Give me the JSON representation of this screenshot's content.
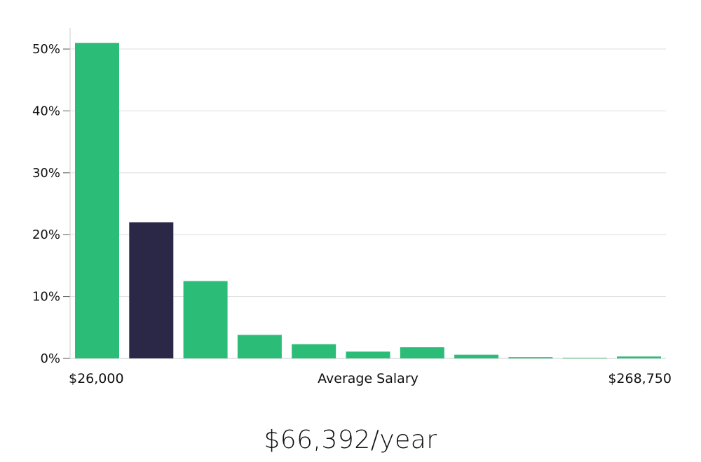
{
  "chart_data": {
    "type": "bar",
    "bins": 11,
    "values": [
      51,
      22,
      12.5,
      3.8,
      2.3,
      1.1,
      1.8,
      0.6,
      0.2,
      0.1,
      0.3
    ],
    "highlight_index": 1,
    "ylim": [
      0,
      53.4
    ],
    "yticks": [
      0,
      10,
      20,
      30,
      40,
      50
    ],
    "ytick_labels": [
      "0%",
      "10%",
      "20%",
      "30%",
      "40%",
      "50%"
    ],
    "xlabel": "Average Salary",
    "x_min_label": "$26,000",
    "x_max_label": "$268,750",
    "grid": true,
    "colors": {
      "bar": "#2bbd78",
      "highlight": "#2a2747",
      "grid": "#dddddd",
      "axis": "#cccccc"
    }
  },
  "salary_text": "$66,392/year"
}
